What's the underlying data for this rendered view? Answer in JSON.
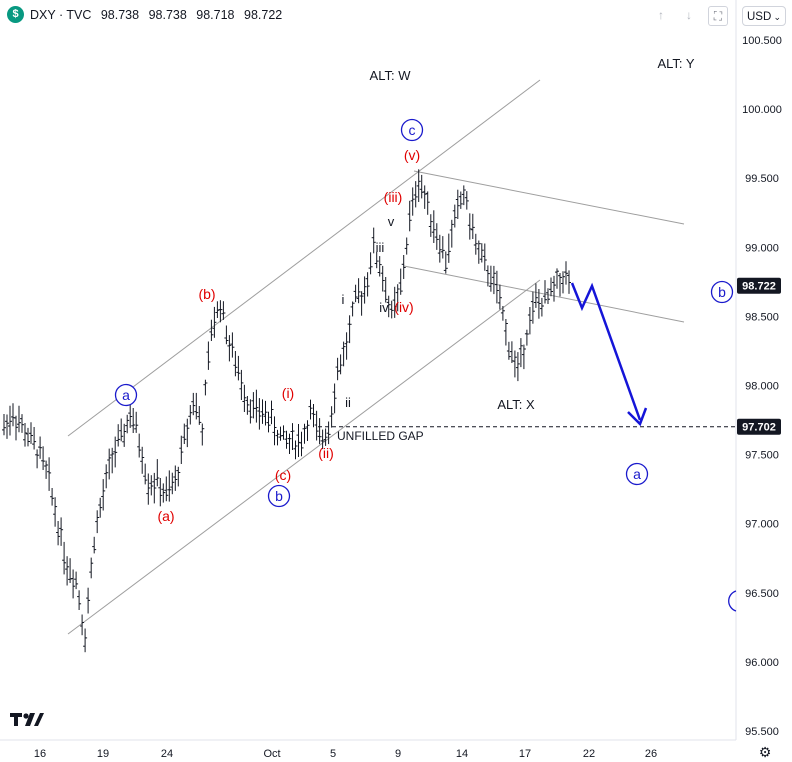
{
  "header": {
    "logo_letter": "$",
    "symbol": "DXY · TVC",
    "open": "98.738",
    "high": "98.738",
    "low": "98.718",
    "close": "98.722",
    "currency": "USD"
  },
  "chart_data": {
    "type": "line",
    "title": "",
    "xlabel": "",
    "ylabel": "",
    "ylim": [
      95.4,
      100.7
    ],
    "x_ticks": [
      "16",
      "19",
      "24",
      "Oct",
      "5",
      "9",
      "14",
      "17",
      "22",
      "26"
    ],
    "y_ticks": [
      "100.500",
      "100.000",
      "99.500",
      "99.000",
      "98.500",
      "98.000",
      "97.500",
      "97.000",
      "96.500",
      "96.000",
      "95.500"
    ],
    "y_tick_values": [
      100.5,
      100.0,
      99.5,
      99.0,
      98.5,
      98.0,
      97.5,
      97.0,
      96.5,
      96.0,
      95.5
    ],
    "series": [
      {
        "values": [
          97.7,
          97.8,
          97.7,
          97.6,
          97.5,
          97.3,
          97.0,
          96.7,
          96.6,
          96.2,
          96.9,
          97.2,
          97.5,
          97.6,
          97.8,
          97.6,
          97.3,
          97.3,
          97.2,
          97.3,
          97.6,
          97.9,
          97.7,
          98.4,
          98.6,
          98.3,
          98.1,
          97.9,
          97.8,
          97.8,
          97.7,
          97.6,
          97.6,
          97.6,
          97.8,
          97.6,
          97.7,
          98.1,
          98.3,
          98.6,
          98.7,
          99.0,
          98.8,
          98.5,
          98.7,
          99.2,
          99.5,
          99.3,
          99.1,
          98.9,
          99.2,
          99.4,
          99.1,
          98.9,
          98.8,
          98.6,
          98.3,
          98.1,
          98.4,
          98.6,
          98.6,
          98.7,
          98.8,
          98.72
        ]
      }
    ],
    "price_label": "98.722",
    "gap_label_price": "97.702",
    "gap_level": 97.702,
    "annotations": {
      "alt_w": "ALT: W",
      "alt_y": "ALT: Y",
      "alt_x": "ALT: X",
      "unfilled_gap": "UNFILLED GAP",
      "a_circle_left": "a",
      "b_circle_low": "b",
      "c_circle_top": "c",
      "b_circle_right": "b",
      "a_circle_right": "a",
      "a_paren": "(a)",
      "b_paren": "(b)",
      "c_paren": "(c)",
      "i_paren": "(i)",
      "ii_paren": "(ii)",
      "iii_paren": "(iii)",
      "iv_paren": "(iv)",
      "v_paren": "(v)",
      "i_small": "i",
      "ii_small": "ii",
      "iii_small": "iii",
      "iv_small": "iv",
      "v_small": "v"
    },
    "grid": false,
    "legend": "none"
  },
  "colors": {
    "candle": "#131722",
    "channel": "#9e9e9e",
    "wave_red": "#e00000",
    "wave_blue": "#1a1acc",
    "projection": "#1515d8",
    "price_label_bg": "#131722"
  },
  "icons": {
    "settings": "gear-icon",
    "tv_logo": "tradingview-logo-icon"
  }
}
